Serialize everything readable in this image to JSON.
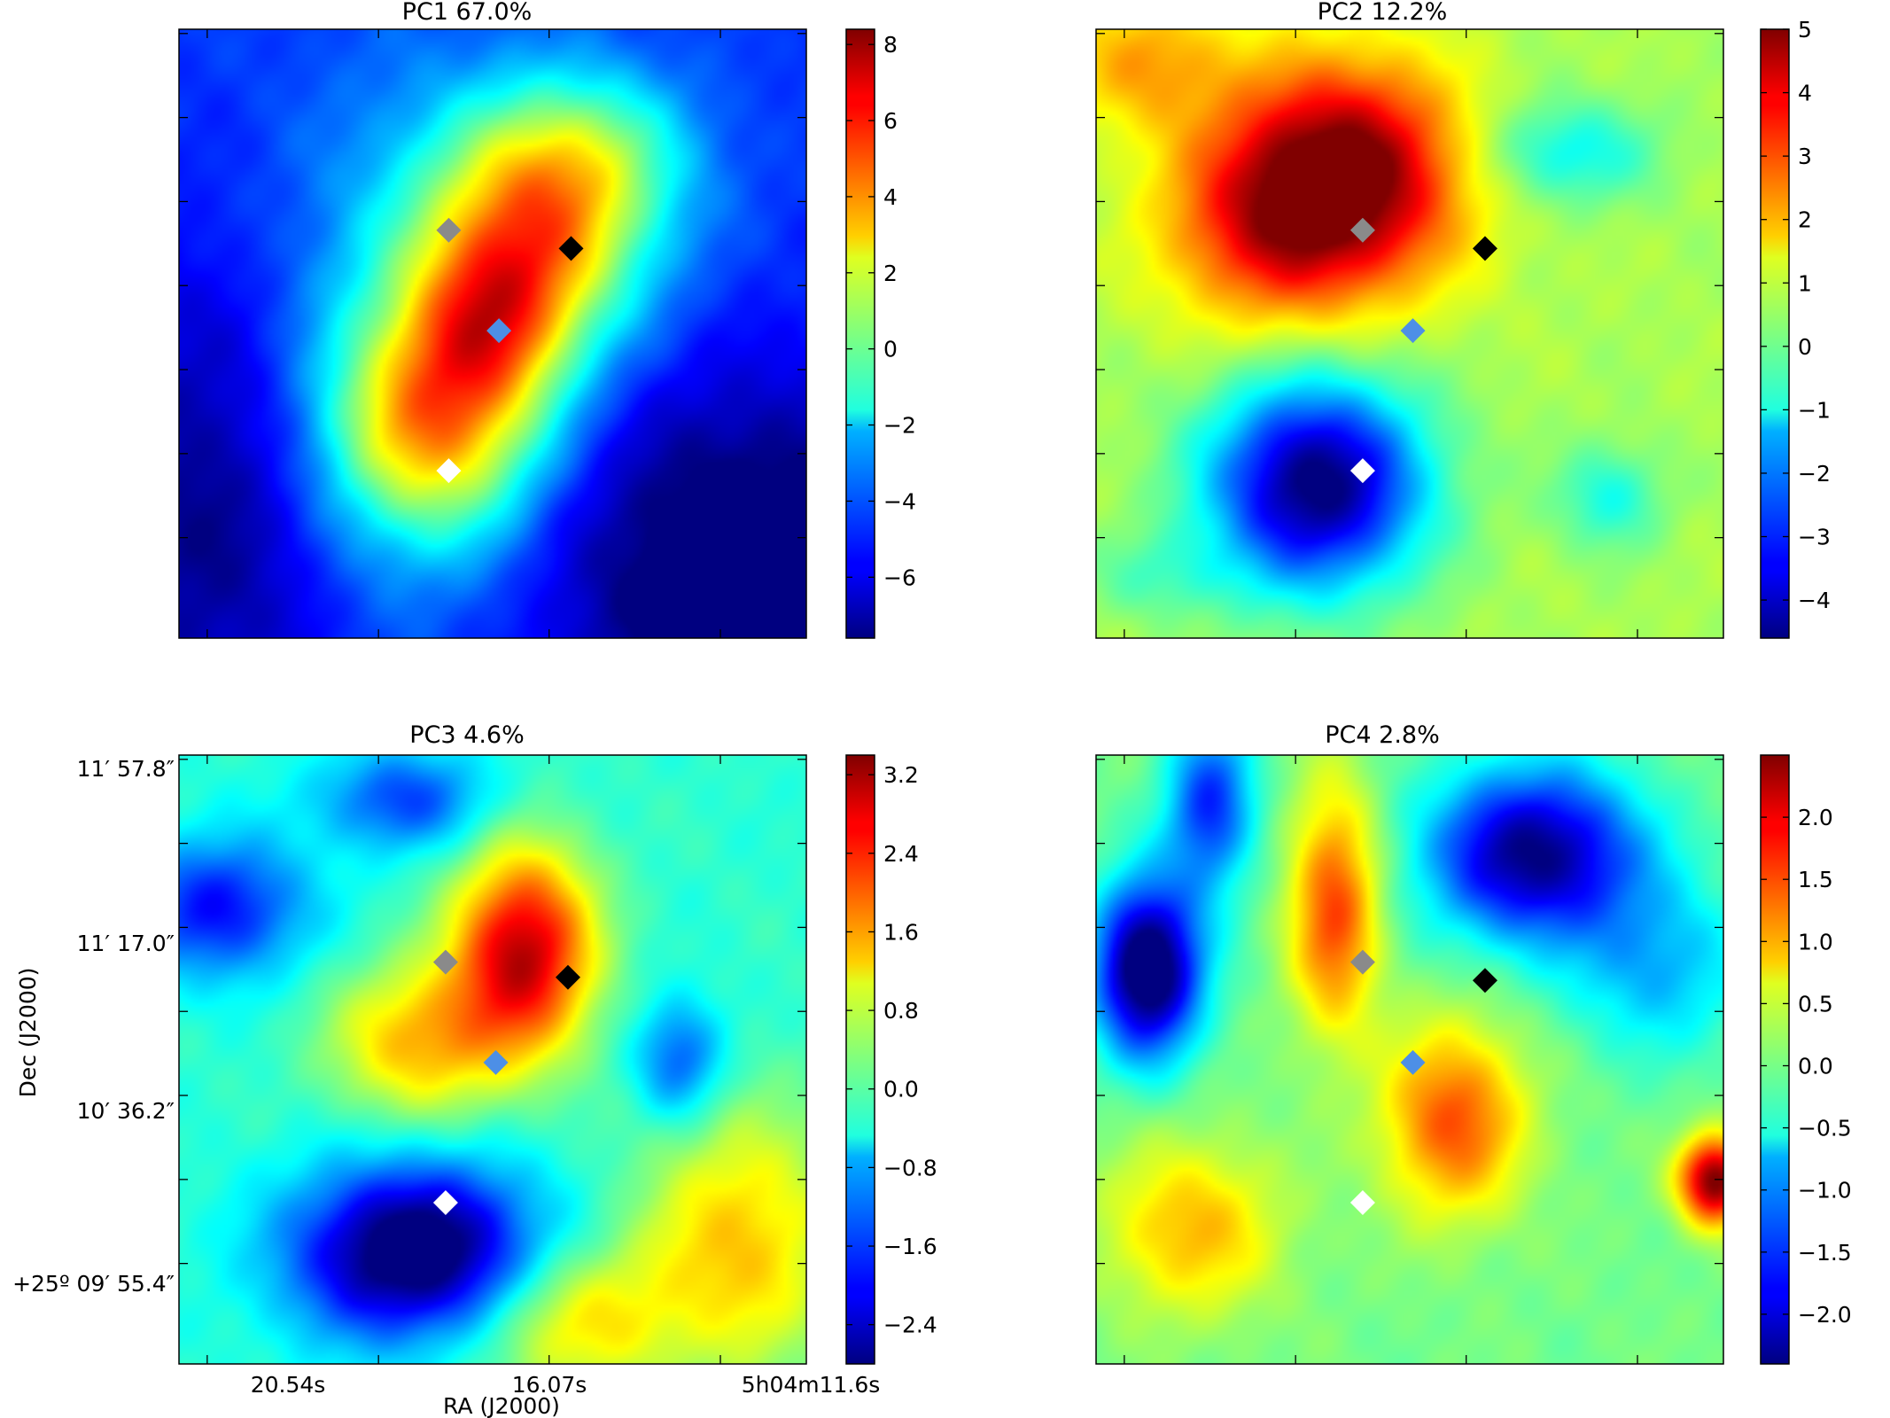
{
  "chart_data": [
    {
      "type": "heatmap",
      "title": "PC1 67.0%",
      "colorbar": {
        "ticks": [
          8,
          6,
          4,
          2,
          0,
          -2,
          -4,
          -6
        ],
        "tick_labels": [
          "8",
          "6",
          "4",
          "2",
          "0",
          "−2",
          "−4",
          "−6"
        ],
        "range": [
          -7.6,
          8.4
        ]
      },
      "markers": [
        {
          "color": "#8a8a8a",
          "u": 0.43,
          "v": 0.33
        },
        {
          "color": "#000000",
          "u": 0.625,
          "v": 0.36
        },
        {
          "color": "#4d8fe6",
          "u": 0.51,
          "v": 0.495
        },
        {
          "color": "#ffffff",
          "u": 0.43,
          "v": 0.725
        }
      ],
      "field": [
        {
          "u": 0.57,
          "v": 0.33,
          "a": 7.6,
          "su": 0.13,
          "sv": 0.14
        },
        {
          "u": 0.41,
          "v": 0.65,
          "a": 7.2,
          "su": 0.12,
          "sv": 0.13
        },
        {
          "u": 0.5,
          "v": 0.48,
          "a": 4.6,
          "su": 0.09,
          "sv": 0.1
        },
        {
          "u": 0.66,
          "v": 0.2,
          "a": 3.2,
          "su": 0.12,
          "sv": 0.1
        },
        {
          "u": 0.36,
          "v": 0.52,
          "a": 2.5,
          "su": 0.16,
          "sv": 0.3
        },
        {
          "u": 0.9,
          "v": 0.9,
          "a": -4.2,
          "su": 0.22,
          "sv": 0.22
        },
        {
          "u": 0.05,
          "v": 0.8,
          "a": -2.8,
          "su": 0.15,
          "sv": 0.3
        }
      ],
      "field_offset": -4.8
    },
    {
      "type": "heatmap",
      "title": "PC2 12.2%",
      "colorbar": {
        "ticks": [
          5,
          4,
          3,
          2,
          1,
          0,
          -1,
          -2,
          -3,
          -4
        ],
        "tick_labels": [
          "5",
          "4",
          "3",
          "2",
          "1",
          "0",
          "−1",
          "−2",
          "−3",
          "−4"
        ],
        "range": [
          -4.6,
          5.0
        ]
      },
      "markers": [
        {
          "color": "#8a8a8a",
          "u": 0.425,
          "v": 0.33
        },
        {
          "color": "#000000",
          "u": 0.62,
          "v": 0.36
        },
        {
          "color": "#4d8fe6",
          "u": 0.505,
          "v": 0.495
        },
        {
          "color": "#ffffff",
          "u": 0.425,
          "v": 0.725
        }
      ],
      "field": [
        {
          "u": 0.4,
          "v": 0.24,
          "a": 4.6,
          "su": 0.13,
          "sv": 0.13
        },
        {
          "u": 0.26,
          "v": 0.32,
          "a": 2.2,
          "su": 0.12,
          "sv": 0.12
        },
        {
          "u": 0.35,
          "v": 0.75,
          "a": -5.4,
          "su": 0.12,
          "sv": 0.12
        },
        {
          "u": 0.75,
          "v": 0.2,
          "a": -1.6,
          "su": 0.1,
          "sv": 0.06
        },
        {
          "u": 0.82,
          "v": 0.77,
          "a": -1.4,
          "su": 0.06,
          "sv": 0.06
        },
        {
          "u": 0.1,
          "v": 0.9,
          "a": -0.8,
          "su": 0.08,
          "sv": 0.05
        },
        {
          "u": 0.08,
          "v": 0.05,
          "a": 1.6,
          "su": 0.1,
          "sv": 0.08
        }
      ],
      "field_offset": 0.6
    },
    {
      "type": "heatmap",
      "title": "PC3 4.6%",
      "colorbar": {
        "ticks": [
          3.2,
          2.4,
          1.6,
          0.8,
          0.0,
          -0.8,
          -1.6,
          -2.4
        ],
        "tick_labels": [
          "3.2",
          "2.4",
          "1.6",
          "0.8",
          "0.0",
          "−0.8",
          "−1.6",
          "−2.4"
        ],
        "range": [
          -2.8,
          3.4
        ]
      },
      "markers": [
        {
          "color": "#8a8a8a",
          "u": 0.425,
          "v": 0.34
        },
        {
          "color": "#000000",
          "u": 0.62,
          "v": 0.365
        },
        {
          "color": "#4d8fe6",
          "u": 0.505,
          "v": 0.505
        },
        {
          "color": "#ffffff",
          "u": 0.425,
          "v": 0.735
        }
      ],
      "field": [
        {
          "u": 0.55,
          "v": 0.32,
          "a": 3.2,
          "su": 0.08,
          "sv": 0.12
        },
        {
          "u": 0.38,
          "v": 0.47,
          "a": 1.7,
          "su": 0.1,
          "sv": 0.09
        },
        {
          "u": 0.38,
          "v": 0.82,
          "a": -3.2,
          "su": 0.14,
          "sv": 0.1
        },
        {
          "u": 0.06,
          "v": 0.25,
          "a": -1.8,
          "su": 0.1,
          "sv": 0.08
        },
        {
          "u": 0.36,
          "v": 0.07,
          "a": -1.4,
          "su": 0.1,
          "sv": 0.06
        },
        {
          "u": 0.8,
          "v": 0.5,
          "a": -1.4,
          "su": 0.05,
          "sv": 0.07
        },
        {
          "u": 0.9,
          "v": 0.8,
          "a": 1.6,
          "su": 0.12,
          "sv": 0.16
        },
        {
          "u": 0.62,
          "v": 0.93,
          "a": 1.5,
          "su": 0.12,
          "sv": 0.09
        }
      ],
      "field_offset": -0.2
    },
    {
      "type": "heatmap",
      "title": "PC4 2.8%",
      "colorbar": {
        "ticks": [
          2.0,
          1.5,
          1.0,
          0.5,
          0.0,
          -0.5,
          -1.0,
          -1.5,
          -2.0
        ],
        "tick_labels": [
          "2.0",
          "1.5",
          "1.0",
          "0.5",
          "0.0",
          "−0.5",
          "−1.0",
          "−1.5",
          "−2.0"
        ],
        "range": [
          -2.4,
          2.5
        ]
      },
      "markers": [
        {
          "color": "#8a8a8a",
          "u": 0.425,
          "v": 0.34
        },
        {
          "color": "#000000",
          "u": 0.62,
          "v": 0.37
        },
        {
          "color": "#4d8fe6",
          "u": 0.505,
          "v": 0.505
        },
        {
          "color": "#ffffff",
          "u": 0.425,
          "v": 0.735
        }
      ],
      "field": [
        {
          "u": 0.38,
          "v": 0.25,
          "a": 1.6,
          "su": 0.05,
          "sv": 0.14
        },
        {
          "u": 0.57,
          "v": 0.6,
          "a": 1.5,
          "su": 0.08,
          "sv": 0.11
        },
        {
          "u": 0.99,
          "v": 0.7,
          "a": 2.6,
          "su": 0.04,
          "sv": 0.05
        },
        {
          "u": 0.08,
          "v": 0.35,
          "a": -2.9,
          "su": 0.06,
          "sv": 0.1
        },
        {
          "u": 0.7,
          "v": 0.16,
          "a": -2.4,
          "su": 0.12,
          "sv": 0.1
        },
        {
          "u": 0.18,
          "v": 0.08,
          "a": -1.6,
          "su": 0.05,
          "sv": 0.1
        },
        {
          "u": 0.9,
          "v": 0.35,
          "a": -0.9,
          "su": 0.1,
          "sv": 0.1
        },
        {
          "u": 0.15,
          "v": 0.78,
          "a": 1.0,
          "su": 0.1,
          "sv": 0.1
        }
      ],
      "field_offset": 0.0
    }
  ],
  "axes": {
    "xlabel": "RA (J2000)",
    "ylabel": "Dec (J2000)",
    "ra_ticks": [
      "20.54s",
      "16.07s",
      "5h04m11.6s"
    ],
    "dec_ticks": [
      "11′ 57.8″",
      "11′ 17.0″",
      "10′ 36.2″",
      "+25º 09′ 55.4″"
    ]
  }
}
